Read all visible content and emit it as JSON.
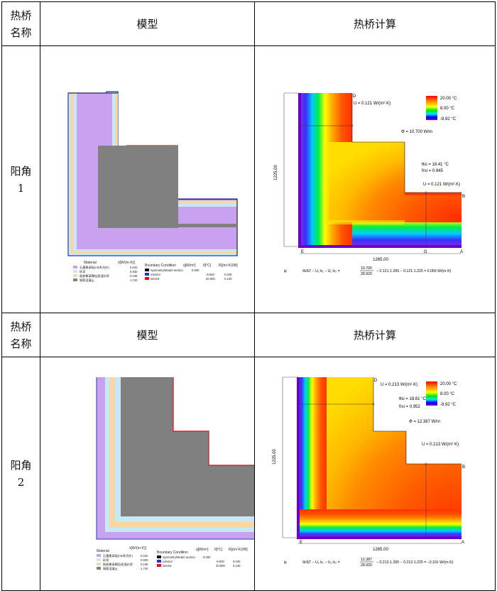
{
  "table": {
    "headers": [
      "热桥名称",
      "模型",
      "热桥计算"
    ],
    "header_col1_lines": [
      "热桥",
      "名称"
    ],
    "rows": [
      {
        "name_lines": [
          "阳角",
          "1"
        ],
        "model": {
          "legend_title": "Material",
          "lambda_header": "λ[W/(m·K)]",
          "materials": [
            {
              "name": "石墨聚苯板(mk系列外)",
              "lambda": "0.042",
              "color": "#c8a2f0"
            },
            {
              "name": "砂浆",
              "lambda": "0.930",
              "color": "#c8e8f8"
            },
            {
              "name": "胶粉聚苯颗粒保温砂浆",
              "lambda": "0.106",
              "color": "#f5d7a8"
            },
            {
              "name": "钢筋混凝土",
              "lambda": "1.740",
              "color": "#808080"
            }
          ],
          "bc_title": "Boundary Condition",
          "bc_headers": [
            "q[W/m²]",
            "θ[°C]",
            "R[(m²·K)/W]"
          ],
          "bcs": [
            {
              "name": "Symmetry/Model section",
              "q": "0.000",
              "theta": "",
              "r": "",
              "color": "#111111"
            },
            {
              "name": "exterior",
              "q": "",
              "theta": "-8.920",
              "r": "0.040",
              "color": "#1a3acc"
            },
            {
              "name": "interior",
              "q": "",
              "theta": "20.000",
              "r": "0.130",
              "color": "#dd1111"
            }
          ]
        },
        "calc": {
          "scale_max": "20.00 °C",
          "scale_mid": "8.00 °C",
          "scale_min": "-8.92 °C",
          "u_top": "U = 0.121 W/(m²·K)",
          "phi": "Φ = 10.700 W/m",
          "theta_si": "θsi = 18.41 °C",
          "frsi": "frsi = 0.945",
          "u_right": "U = 0.121 W/(m²·K)",
          "dim_vertical": "1225.00",
          "dim_horizontal": "1265.00",
          "points": {
            "D": "D",
            "B": "B",
            "E": "E",
            "G": "G",
            "A": "A"
          },
          "formula_lhs": "ψ",
          "formula_mid": "Φ/ΔT − U₁·b₁ − U₂·b₂ =",
          "formula_num": "10.700",
          "formula_den": "28.920",
          "formula_rest": "− 0.121·1.265 − 0.121·1.225 = 0.069 W/(m·K)"
        }
      },
      {
        "name_lines": [
          "阳角",
          "2"
        ],
        "model": {
          "legend_title": "Material",
          "lambda_header": "λ[W/(m·K)]",
          "materials": [
            {
              "name": "石墨聚苯板(mk系列外)",
              "lambda": "0.042",
              "color": "#c8a2f0"
            },
            {
              "name": "砂浆",
              "lambda": "0.930",
              "color": "#c8e8f8"
            },
            {
              "name": "胶粉聚苯颗粒保温砂浆",
              "lambda": "0.106",
              "color": "#f5d7a8"
            },
            {
              "name": "钢筋混凝土",
              "lambda": "1.740",
              "color": "#808080"
            }
          ],
          "bc_title": "Boundary Condition",
          "bc_headers": [
            "q[W/m²]",
            "θ[°C]",
            "R[(m²·K)/W]"
          ],
          "bcs": [
            {
              "name": "Symmetry/Model section",
              "q": "0.000",
              "theta": "",
              "r": "",
              "color": "#111111"
            },
            {
              "name": "exterior",
              "q": "",
              "theta": "-8.920",
              "r": "0.040",
              "color": "#1a3acc"
            },
            {
              "name": "interior",
              "q": "",
              "theta": "20.000",
              "r": "0.130",
              "color": "#dd1111"
            }
          ]
        },
        "calc": {
          "scale_max": "20.00 °C",
          "scale_mid": "8.00 °C",
          "scale_min": "-8.92 °C",
          "u_top": "U = 0.213 W/(m²·K)",
          "phi": "Φ = 12.387 W/m",
          "theta_si": "θsi = 18.61 °C",
          "frsi": "frsi = 0.952",
          "u_right": "U = 0.213 W/(m²·K)",
          "dim_vertical": "1225.00",
          "dim_horizontal": "1265.00",
          "points": {
            "D": "D",
            "B": "B",
            "E": "E",
            "A": "A"
          },
          "formula_lhs": "ψ",
          "formula_mid": "Φ/ΔT − U₁·b₁ − U₂·b₂ =",
          "formula_num": "12.387",
          "formula_den": "28.920",
          "formula_rest": "− 0.213·1.265 − 0.213·1.225 = −0.101 W/(m·K)"
        }
      }
    ]
  }
}
